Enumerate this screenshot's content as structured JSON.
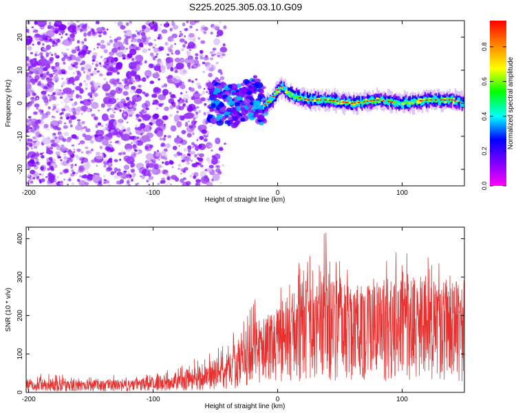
{
  "title": "S225.2025.305.03.10.G09",
  "colors": {
    "snr_line": "#e8302f",
    "axes": "#000000"
  },
  "chart_data": [
    {
      "type": "heatmap",
      "name": "spectrogram",
      "xlabel": "Height of straight line (km)",
      "ylabel": "Frequency (Hz)",
      "xlim": [
        -202,
        150
      ],
      "ylim": [
        -25,
        25
      ],
      "x_ticks": [
        -200,
        -100,
        0,
        100
      ],
      "x_tick_labels": [
        "-200",
        "-100",
        "0",
        "100"
      ],
      "y_ticks": [
        -20,
        -10,
        0,
        10,
        20
      ],
      "y_tick_labels": [
        "-20",
        "-10",
        "0",
        "10",
        "20"
      ],
      "colorbar": {
        "label": "Normalized spectral amplitude",
        "range": [
          0,
          0.95
        ],
        "ticks": [
          0.0,
          0.2,
          0.4,
          0.6,
          0.8
        ],
        "tick_labels": [
          "0.0",
          "0.2",
          "0.4",
          "0.6",
          "0.8"
        ],
        "stops": [
          "#ff00ff",
          "#7f00ff",
          "#0000ff",
          "#00ffff",
          "#00ff00",
          "#ffff00",
          "#ff7f00",
          "#ff0000"
        ]
      },
      "ridge_center_hz": [
        [
          -45,
          0
        ],
        [
          -35,
          -1
        ],
        [
          -25,
          1
        ],
        [
          -18,
          2
        ],
        [
          -12,
          -1
        ],
        [
          -5,
          1
        ],
        [
          0,
          4
        ],
        [
          3,
          5
        ],
        [
          8,
          3
        ],
        [
          15,
          2
        ],
        [
          25,
          1
        ],
        [
          40,
          1
        ],
        [
          60,
          0
        ],
        [
          80,
          1
        ],
        [
          100,
          0
        ],
        [
          120,
          1
        ],
        [
          140,
          1
        ],
        [
          150,
          0
        ]
      ],
      "strong_ridge_segments_km": [
        [
          -10,
          5
        ],
        [
          18,
          95
        ],
        [
          115,
          148
        ]
      ]
    },
    {
      "type": "line",
      "name": "snr",
      "xlabel": "Height of straight line (km)",
      "ylabel": "SNR (10 * v/v)",
      "xlim": [
        -202,
        150
      ],
      "ylim": [
        0,
        430
      ],
      "x_ticks": [
        -200,
        -100,
        0,
        100
      ],
      "x_tick_labels": [
        "-200",
        "-100",
        "0",
        "100"
      ],
      "y_ticks": [
        0,
        100,
        200,
        300,
        400
      ],
      "y_tick_labels": [
        "0",
        "100",
        "200",
        "300",
        "400"
      ],
      "series": [
        {
          "name": "SNR",
          "envelope_x": [
            -202,
            -150,
            -120,
            -100,
            -80,
            -65,
            -55,
            -40,
            -30,
            -20,
            -10,
            0,
            10,
            20,
            30,
            40,
            50,
            60,
            80,
            100,
            120,
            140,
            150
          ],
          "envelope_typical": [
            20,
            20,
            22,
            25,
            30,
            35,
            45,
            60,
            80,
            110,
            140,
            160,
            175,
            185,
            190,
            195,
            195,
            195,
            195,
            195,
            195,
            195,
            195
          ],
          "envelope_peak": [
            50,
            45,
            45,
            50,
            70,
            90,
            100,
            140,
            200,
            240,
            250,
            270,
            300,
            360,
            420,
            430,
            380,
            330,
            340,
            390,
            370,
            320,
            250
          ]
        }
      ]
    }
  ]
}
